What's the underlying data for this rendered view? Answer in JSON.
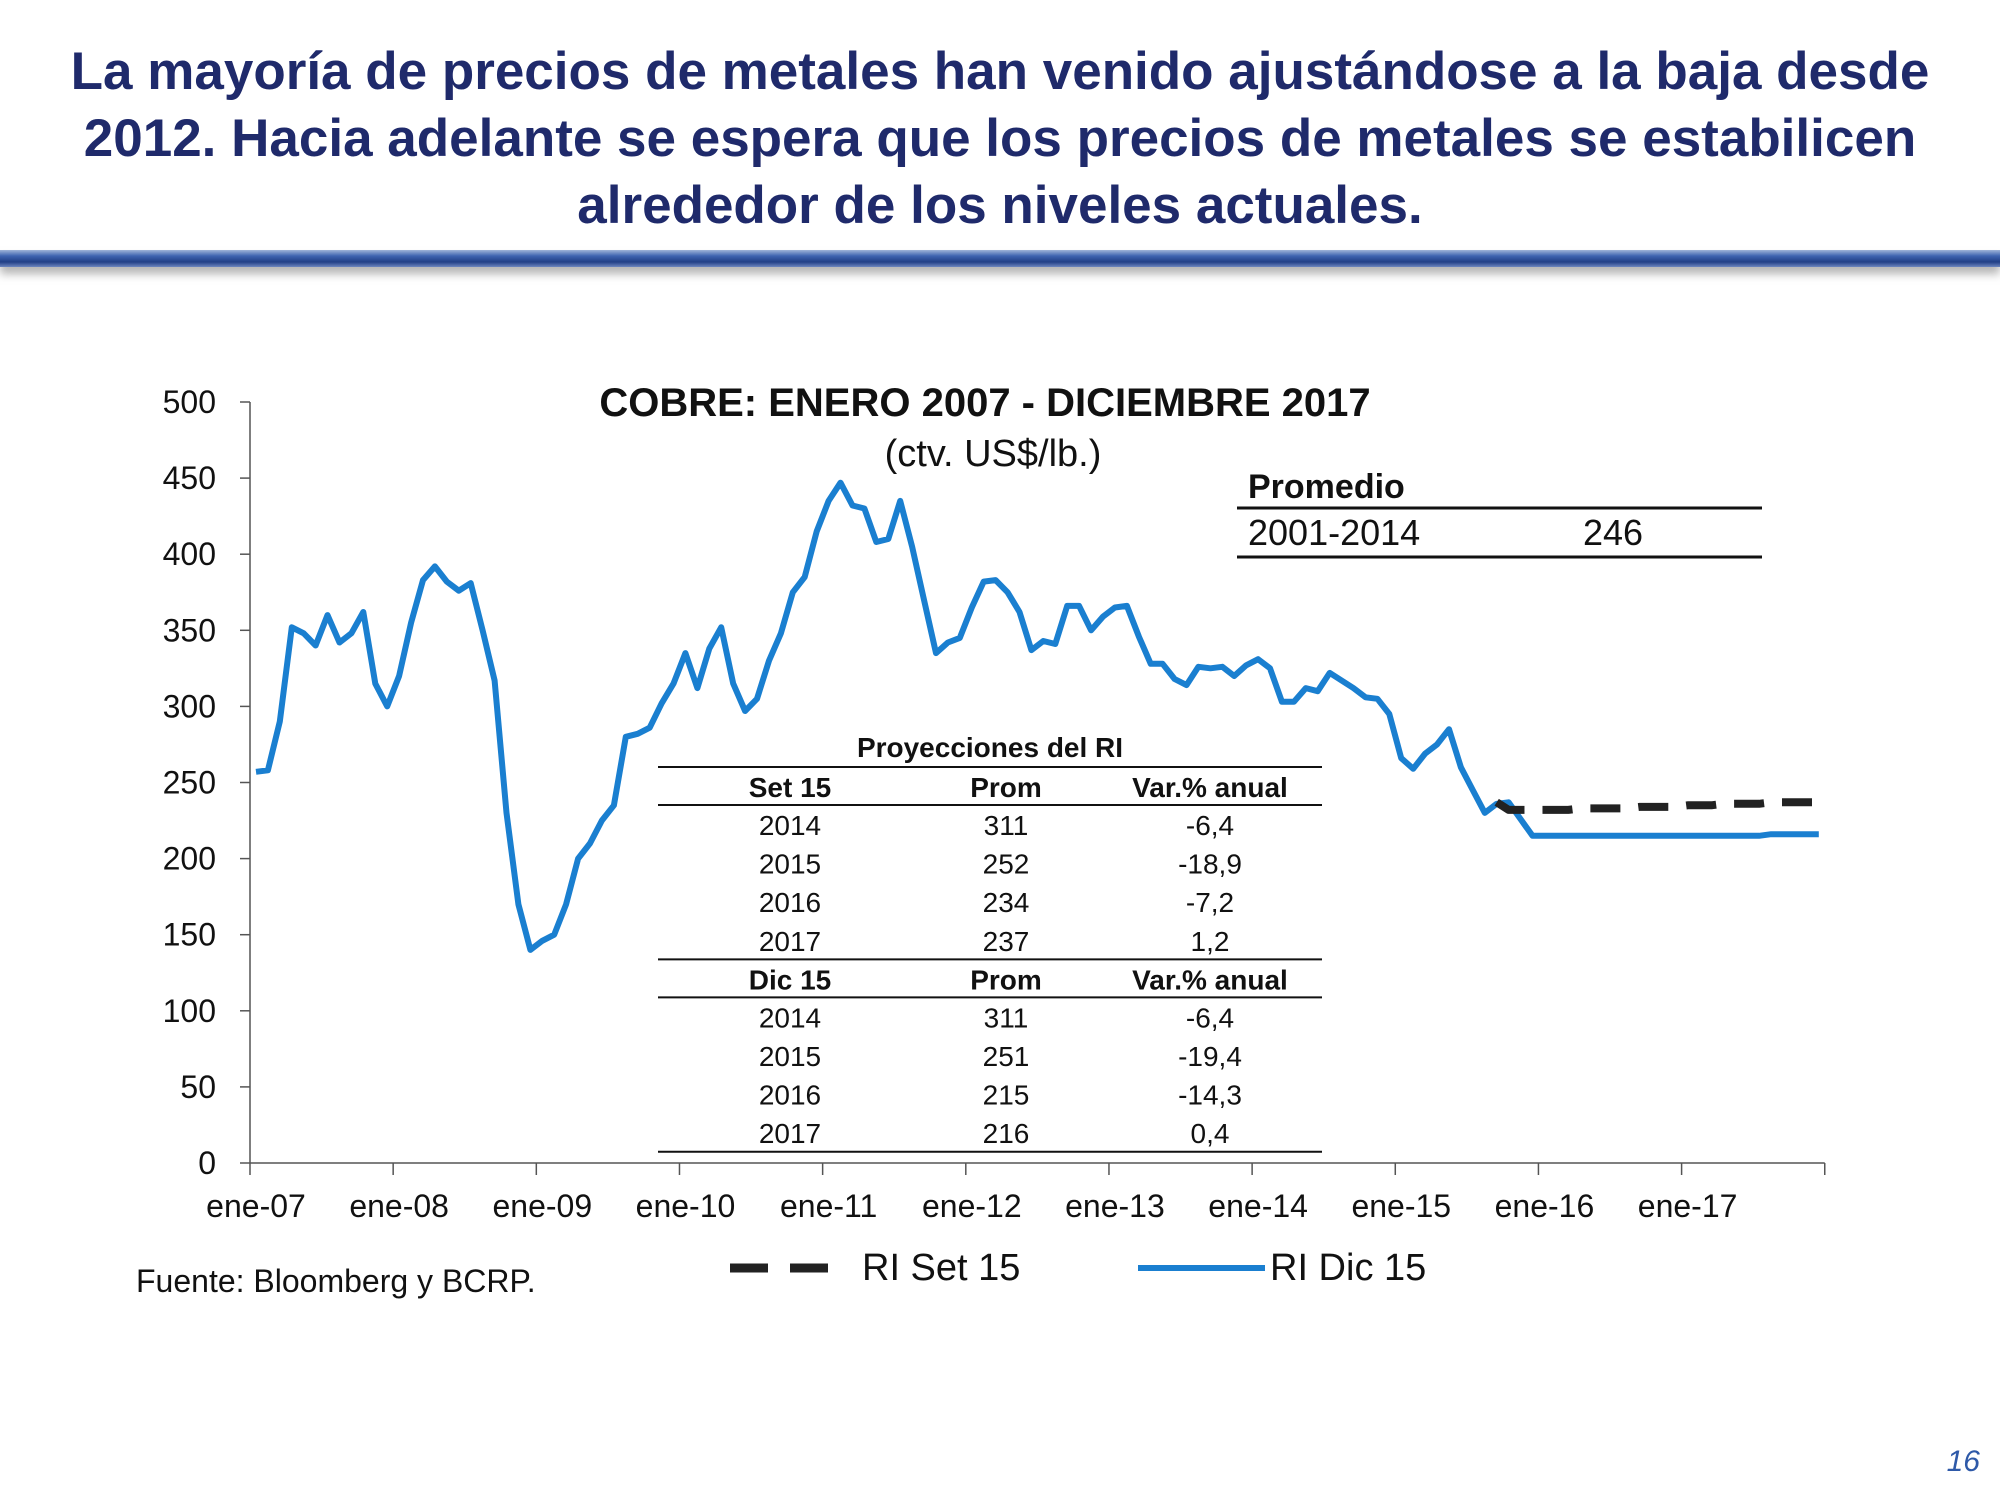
{
  "slide": {
    "title_lines": [
      "La mayoría de precios de metales han venido ajustándose a la baja desde",
      "2012. Hacia adelante se espera que los precios de metales se estabilicen",
      "alrededor de los niveles actuales."
    ],
    "page_number": "16",
    "source": "Fuente: Bloomberg y BCRP."
  },
  "chart_data": {
    "type": "line",
    "title": "COBRE: ENERO 2007 - DICIEMBRE 2017",
    "subtitle": "(ctv. US$/lb.)",
    "ylim": [
      0,
      500
    ],
    "yticks": [
      "0",
      "50",
      "100",
      "150",
      "200",
      "250",
      "300",
      "350",
      "400",
      "450",
      "500"
    ],
    "x_tick_labels": [
      "ene-07",
      "ene-08",
      "ene-09",
      "ene-10",
      "ene-11",
      "ene-12",
      "ene-13",
      "ene-14",
      "ene-15",
      "ene-16",
      "ene-17"
    ],
    "x_range_months": [
      "2007-01",
      "2017-12"
    ],
    "legend_position": "bottom",
    "series": [
      {
        "name": "RI Set 15",
        "color": "#222222",
        "style": "dashed",
        "start": "2015-09",
        "values": [
          237,
          232,
          232,
          232,
          232,
          232,
          232,
          233,
          233,
          233,
          233,
          233,
          234,
          234,
          234,
          234,
          235,
          235,
          235,
          236,
          236,
          236,
          236,
          237,
          237,
          237,
          237,
          237
        ]
      },
      {
        "name": "RI Dic 15",
        "color": "#1a7fd0",
        "style": "solid",
        "start": "2007-01",
        "values": [
          257,
          258,
          290,
          352,
          348,
          340,
          360,
          342,
          348,
          362,
          315,
          300,
          320,
          355,
          383,
          392,
          382,
          376,
          381,
          350,
          317,
          230,
          170,
          140,
          146,
          150,
          170,
          200,
          210,
          225,
          235,
          280,
          282,
          286,
          302,
          315,
          335,
          312,
          338,
          352,
          315,
          297,
          305,
          330,
          348,
          375,
          385,
          415,
          435,
          447,
          432,
          430,
          408,
          410,
          435,
          405,
          370,
          335,
          342,
          345,
          365,
          382,
          383,
          375,
          362,
          337,
          343,
          341,
          366,
          366,
          350,
          359,
          365,
          366,
          346,
          328,
          328,
          318,
          314,
          326,
          325,
          326,
          320,
          327,
          331,
          325,
          303,
          303,
          312,
          310,
          322,
          317,
          312,
          306,
          305,
          295,
          266,
          259,
          269,
          275,
          285,
          260,
          245,
          230,
          236,
          237,
          226,
          215,
          215,
          215,
          215,
          215,
          215,
          215,
          215,
          215,
          215,
          215,
          215,
          215,
          215,
          215,
          215,
          215,
          215,
          215,
          215,
          216,
          216,
          216,
          216,
          216
        ]
      }
    ],
    "promedio_box": {
      "header": "Promedio",
      "period": "2001-2014",
      "value": "246"
    },
    "projection_table": {
      "title": "Proyecciones del RI",
      "col_prom": "Prom",
      "col_var": "Var.% anual",
      "groups": [
        {
          "label": "Set 15",
          "rows": [
            [
              "2014",
              "311",
              "-6,4"
            ],
            [
              "2015",
              "252",
              "-18,9"
            ],
            [
              "2016",
              "234",
              "-7,2"
            ],
            [
              "2017",
              "237",
              "1,2"
            ]
          ]
        },
        {
          "label": "Dic 15",
          "rows": [
            [
              "2014",
              "311",
              "-6,4"
            ],
            [
              "2015",
              "251",
              "-19,4"
            ],
            [
              "2016",
              "215",
              "-14,3"
            ],
            [
              "2017",
              "216",
              "0,4"
            ]
          ]
        }
      ]
    }
  }
}
